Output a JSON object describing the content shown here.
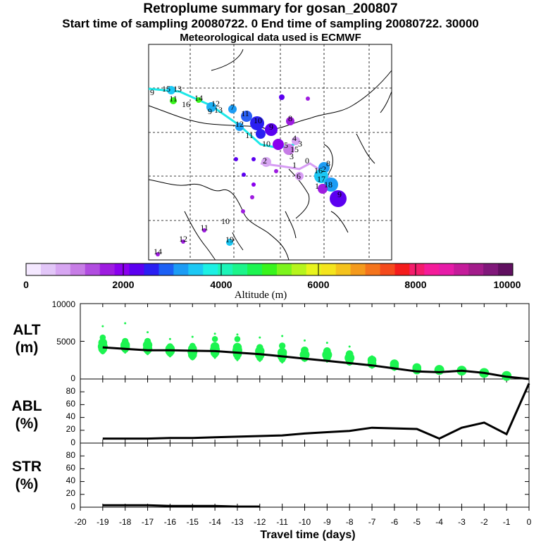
{
  "header": {
    "title": "Retroplume summary for gosan_200807",
    "sampling": "Start time of sampling 20080722.     0     End time of sampling 20080722. 30000",
    "met": "Meteorological data used is ECMWF"
  },
  "colorbar": {
    "label": "Altitude (m)",
    "ticks": [
      "0",
      "2000",
      "4000",
      "6000",
      "8000",
      "10000"
    ],
    "stops": [
      "#f4e8ff",
      "#e2c6f8",
      "#d7a6f2",
      "#c77de6",
      "#b14de0",
      "#9e1ce0",
      "#8a00ee",
      "#5b00f0",
      "#2a1ff2",
      "#1c60f4",
      "#1c9cf4",
      "#1cc8f4",
      "#1cf0e4",
      "#1cf4b8",
      "#1cf48a",
      "#1cf450",
      "#38f41c",
      "#7cf41c",
      "#b6f41c",
      "#e8f41c",
      "#f4e41c",
      "#f4c21c",
      "#f49a1c",
      "#f4741c",
      "#f44a1c",
      "#f41c1c",
      "#f41c6c",
      "#f41c9a",
      "#e61ca8",
      "#c41c9a",
      "#a21c8a",
      "#80187a",
      "#601060"
    ]
  },
  "map": {
    "labels": [
      {
        "text": "9",
        "x": 216,
        "y": 135
      },
      {
        "text": "15",
        "x": 236,
        "y": 130
      },
      {
        "text": "13",
        "x": 252,
        "y": 130
      },
      {
        "text": "11",
        "x": 246,
        "y": 144
      },
      {
        "text": "14",
        "x": 282,
        "y": 143
      },
      {
        "text": "16",
        "x": 264,
        "y": 152
      },
      {
        "text": "12",
        "x": 306,
        "y": 151
      },
      {
        "text": "13",
        "x": 310,
        "y": 160
      },
      {
        "text": "9",
        "x": 298,
        "y": 162
      },
      {
        "text": "7",
        "x": 330,
        "y": 156
      },
      {
        "text": "11",
        "x": 348,
        "y": 165
      },
      {
        "text": "10",
        "x": 366,
        "y": 175
      },
      {
        "text": "12",
        "x": 340,
        "y": 180
      },
      {
        "text": "9",
        "x": 385,
        "y": 184
      },
      {
        "text": "8",
        "x": 412,
        "y": 172
      },
      {
        "text": "11",
        "x": 354,
        "y": 196
      },
      {
        "text": "10",
        "x": 378,
        "y": 208
      },
      {
        "text": "4",
        "x": 418,
        "y": 200
      },
      {
        "text": "3",
        "x": 426,
        "y": 208
      },
      {
        "text": "5",
        "x": 406,
        "y": 210
      },
      {
        "text": "15",
        "x": 418,
        "y": 216
      },
      {
        "text": "3",
        "x": 414,
        "y": 226
      },
      {
        "text": "2",
        "x": 376,
        "y": 232
      },
      {
        "text": "1",
        "x": 418,
        "y": 238
      },
      {
        "text": "0",
        "x": 436,
        "y": 232
      },
      {
        "text": "6",
        "x": 424,
        "y": 254
      },
      {
        "text": "16",
        "x": 452,
        "y": 246
      },
      {
        "text": "2",
        "x": 460,
        "y": 244
      },
      {
        "text": "8",
        "x": 466,
        "y": 236
      },
      {
        "text": "17",
        "x": 456,
        "y": 258
      },
      {
        "text": "18",
        "x": 466,
        "y": 266
      },
      {
        "text": "9",
        "x": 482,
        "y": 280
      },
      {
        "text": "1",
        "x": 450,
        "y": 268
      },
      {
        "text": "10",
        "x": 320,
        "y": 318
      },
      {
        "text": "11",
        "x": 290,
        "y": 327
      },
      {
        "text": "19",
        "x": 326,
        "y": 344
      },
      {
        "text": "12",
        "x": 260,
        "y": 343
      },
      {
        "text": "14",
        "x": 224,
        "y": 361
      }
    ]
  },
  "panels": {
    "alt": {
      "label1": "ALT",
      "label2": "(m)",
      "yticks": [
        "0",
        "5000",
        "10000"
      ]
    },
    "abl": {
      "label1": "ABL",
      "label2": "(%)",
      "yticks": [
        "0",
        "20",
        "40",
        "60",
        "80"
      ]
    },
    "str": {
      "label1": "STR",
      "label2": "(%)",
      "yticks": [
        "0",
        "20",
        "40",
        "60",
        "80"
      ]
    }
  },
  "xaxis": {
    "label": "Travel time (days)",
    "ticks": [
      "-20",
      "-19",
      "-18",
      "-17",
      "-16",
      "-15",
      "-14",
      "-13",
      "-12",
      "-11",
      "-10",
      "-9",
      "-8",
      "-7",
      "-6",
      "-5",
      "-4",
      "-3",
      "-2",
      "-1",
      "0"
    ]
  },
  "chart_data": {
    "type": "line",
    "x": [
      -19,
      -18,
      -17,
      -16,
      -15,
      -14,
      -13,
      -12,
      -11,
      -10,
      -9,
      -8,
      -7,
      -6,
      -5,
      -4,
      -3,
      -2,
      -1,
      0
    ],
    "series": [
      {
        "name": "ALT (m)",
        "values": [
          4200,
          4000,
          3800,
          3800,
          3750,
          3700,
          3500,
          3300,
          3000,
          2700,
          2400,
          2100,
          1800,
          1400,
          1000,
          900,
          1100,
          800,
          300,
          0
        ]
      },
      {
        "name": "ABL (%)",
        "values": [
          7,
          7,
          7,
          8,
          8,
          9,
          10,
          11,
          12,
          15,
          17,
          19,
          24,
          23,
          22,
          7,
          24,
          32,
          14,
          93
        ]
      },
      {
        "name": "STR (%)",
        "values": [
          3,
          3,
          3,
          2,
          2,
          2,
          1,
          1,
          0,
          0,
          0,
          0,
          0,
          0,
          0,
          0,
          0,
          0,
          0,
          0
        ]
      }
    ],
    "alt_dot_clusters": [
      {
        "x": -19,
        "y": [
          7000,
          5500,
          4800,
          4300,
          4000,
          3700,
          3400
        ]
      },
      {
        "x": -18,
        "y": [
          7400,
          5000,
          4500,
          4200,
          3900,
          3500
        ]
      },
      {
        "x": -17,
        "y": [
          6200,
          5000,
          4500,
          4000,
          3700,
          3300
        ]
      },
      {
        "x": -16,
        "y": [
          5300,
          4300,
          4000,
          3700,
          3400,
          3000
        ]
      },
      {
        "x": -15,
        "y": [
          5600,
          4400,
          4000,
          3600,
          3200,
          2900,
          2600
        ]
      },
      {
        "x": -14,
        "y": [
          6000,
          5300,
          4300,
          3900,
          3500,
          3200,
          2800
        ]
      },
      {
        "x": -13,
        "y": [
          5900,
          5300,
          4200,
          3800,
          3300,
          2900,
          2500
        ]
      },
      {
        "x": -12,
        "y": [
          5500,
          4200,
          3700,
          3200,
          2800,
          2400
        ]
      },
      {
        "x": -11,
        "y": [
          5700,
          4400,
          3500,
          3000,
          2600,
          2200
        ]
      },
      {
        "x": -10,
        "y": [
          5100,
          3800,
          3200,
          2800,
          2400
        ]
      },
      {
        "x": -9,
        "y": [
          4800,
          3700,
          3200,
          2800,
          2300
        ]
      },
      {
        "x": -8,
        "y": [
          4300,
          3300,
          2800,
          2300,
          1900
        ]
      },
      {
        "x": -7,
        "y": [
          3000,
          2500,
          2000,
          1500
        ]
      },
      {
        "x": -6,
        "y": [
          2400,
          2000,
          1700,
          1200
        ]
      },
      {
        "x": -5,
        "y": [
          1900,
          1500,
          1200,
          900
        ]
      },
      {
        "x": -4,
        "y": [
          1600,
          1200,
          900
        ]
      },
      {
        "x": -3,
        "y": [
          1400,
          1100,
          900
        ]
      },
      {
        "x": -2,
        "y": [
          1100,
          800,
          600
        ]
      },
      {
        "x": -1,
        "y": [
          600,
          400,
          200
        ]
      }
    ],
    "xlabel": "Travel time (days)",
    "ylim_alt": [
      0,
      10000
    ],
    "ylim_pct": [
      0,
      100
    ],
    "colorbar_label": "Altitude (m)",
    "colorbar_range": [
      0,
      10000
    ]
  }
}
